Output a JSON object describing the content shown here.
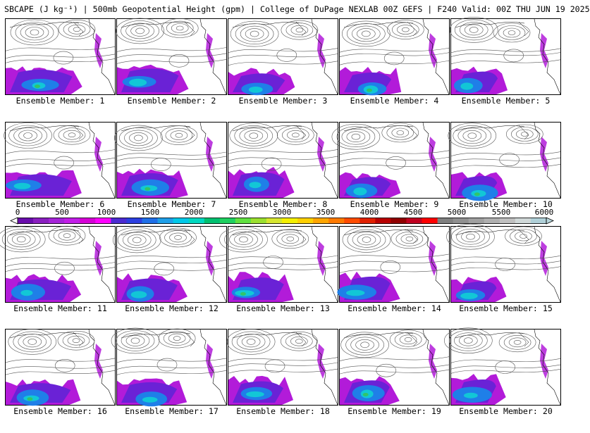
{
  "header": {
    "title": "SBCAPE (J kg⁻¹) | 500mb Geopotential Height (gpm) | College of DuPage NEXLAB 00Z GEFS | F240 Valid: 00Z THU JUN 19 2025"
  },
  "members": [
    {
      "label": "Ensemble Member: 1"
    },
    {
      "label": "Ensemble Member: 2"
    },
    {
      "label": "Ensemble Member: 3"
    },
    {
      "label": "Ensemble Member: 4"
    },
    {
      "label": "Ensemble Member: 5"
    },
    {
      "label": "Ensemble Member: 6"
    },
    {
      "label": "Ensemble Member: 7"
    },
    {
      "label": "Ensemble Member: 8"
    },
    {
      "label": "Ensemble Member: 9"
    },
    {
      "label": "Ensemble Member: 10"
    },
    {
      "label": "Ensemble Member: 11"
    },
    {
      "label": "Ensemble Member: 12"
    },
    {
      "label": "Ensemble Member: 13"
    },
    {
      "label": "Ensemble Member: 14"
    },
    {
      "label": "Ensemble Member: 15"
    },
    {
      "label": "Ensemble Member: 16"
    },
    {
      "label": "Ensemble Member: 17"
    },
    {
      "label": "Ensemble Member: 18"
    },
    {
      "label": "Ensemble Member: 19"
    },
    {
      "label": "Ensemble Member: 20"
    }
  ],
  "colorbar": {
    "ticks": [
      "0",
      "500",
      "1000",
      "1500",
      "2000",
      "2500",
      "3000",
      "3500",
      "4000",
      "4500",
      "5000",
      "5500",
      "6000"
    ],
    "min": 0,
    "max": 6000,
    "colors": [
      "#6a0dad",
      "#8a1fc0",
      "#a524d8",
      "#c21ee8",
      "#d600d6",
      "#ff00ff",
      "#4b2bd1",
      "#2c3fe0",
      "#1f6fe8",
      "#1f9fe8",
      "#00c8e8",
      "#00d8c0",
      "#00c070",
      "#1fd060",
      "#60e040",
      "#9be02f",
      "#d6e62f",
      "#f4f000",
      "#ffd000",
      "#ffa600",
      "#ff7a00",
      "#ff4c00",
      "#e02000",
      "#b80000",
      "#900000",
      "#c00020",
      "#ff0000",
      "#808080",
      "#909090",
      "#a0a0a0",
      "#b0b0b0",
      "#c0c0c0",
      "#d0d8d8",
      "#b0d0d8"
    ]
  }
}
